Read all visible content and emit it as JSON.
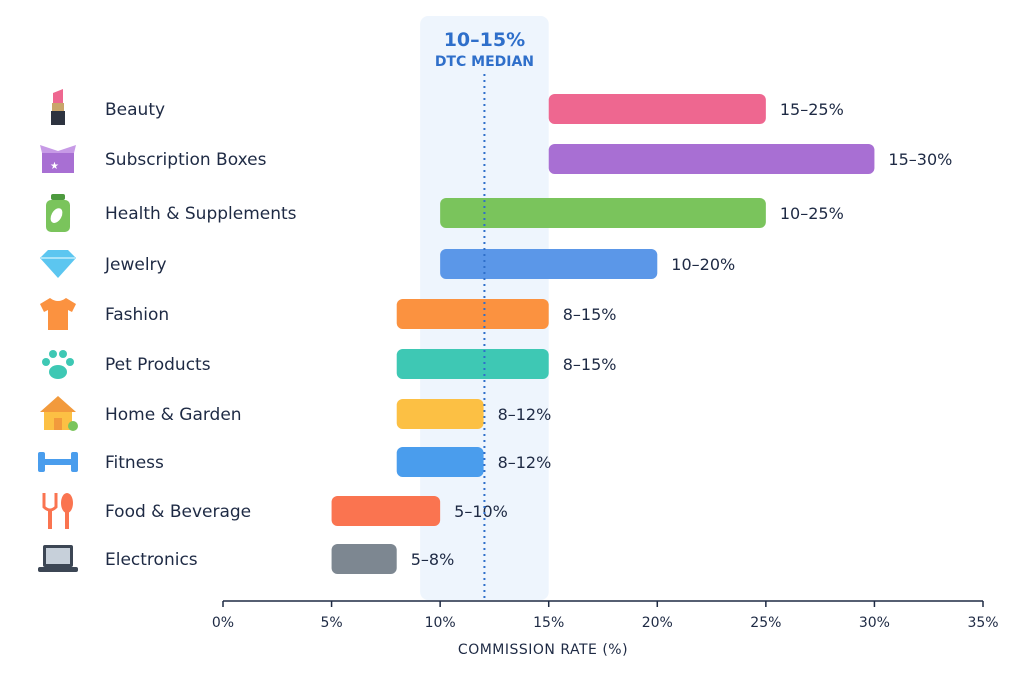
{
  "chart_data": {
    "type": "bar",
    "orientation": "horizontal-range",
    "xlabel": "COMMISSION RATE (%)",
    "xlim": [
      0,
      35
    ],
    "xticks": [
      "0%",
      "5%",
      "10%",
      "15%",
      "20%",
      "25%",
      "30%",
      "35%"
    ],
    "grid": false,
    "median_band": {
      "range": [
        10,
        15
      ],
      "label": "10–15%",
      "sublabel": "DTC MEDIAN",
      "color": "#eef5fd"
    },
    "categories": [
      {
        "name": "Beauty",
        "range": [
          15,
          25
        ],
        "label": "15–25%",
        "color": "#ee6790",
        "icon": "lipstick-icon"
      },
      {
        "name": "Subscription Boxes",
        "range": [
          15,
          30
        ],
        "label": "15–30%",
        "color": "#a86fd3",
        "icon": "gift-box-icon"
      },
      {
        "name": "Health & Supplements",
        "range": [
          10,
          25
        ],
        "label": "10–25%",
        "color": "#7ac45c",
        "icon": "supplement-bottle-icon"
      },
      {
        "name": "Jewelry",
        "range": [
          10,
          20
        ],
        "label": "10–20%",
        "color": "#5b97e8",
        "icon": "diamond-icon"
      },
      {
        "name": "Fashion",
        "range": [
          8,
          15
        ],
        "label": "8–15%",
        "color": "#fb9240",
        "icon": "tshirt-icon"
      },
      {
        "name": "Pet Products",
        "range": [
          8,
          15
        ],
        "label": "8–15%",
        "color": "#3ec8b4",
        "icon": "paw-icon"
      },
      {
        "name": "Home & Garden",
        "range": [
          8,
          12
        ],
        "label": "8–12%",
        "color": "#fcc044",
        "icon": "house-icon"
      },
      {
        "name": "Fitness",
        "range": [
          8,
          12
        ],
        "label": "8–12%",
        "color": "#4a9ded",
        "icon": "dumbbell-icon"
      },
      {
        "name": "Food & Beverage",
        "range": [
          5,
          10
        ],
        "label": "5–10%",
        "color": "#fa7450",
        "icon": "fork-spoon-icon"
      },
      {
        "name": "Electronics",
        "range": [
          5,
          8
        ],
        "label": "5–8%",
        "color": "#7d8791",
        "icon": "laptop-icon"
      }
    ]
  }
}
